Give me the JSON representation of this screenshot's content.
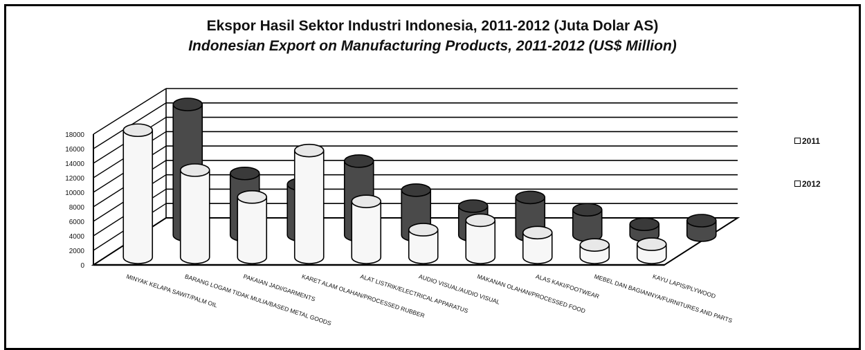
{
  "chart_data": {
    "type": "bar",
    "title": "Ekspor Hasil Sektor Industri Indonesia, 2011-2012 (Juta Dolar AS)",
    "subtitle": "Indonesian Export on Manufacturing Products, 2011-2012 (US$ Million)",
    "categories": [
      "MINYAK KELAPA SAWIT/PALM OIL",
      "BARANG LOGAM TIDAK MULIA/BASED METAL GOODS",
      "PAKAIAN JADI/GARMENTS",
      "KARET ALAM OLAHAN/PROCESSED RUBBER",
      "ALAT LISTRIK/ELECTRICAL APPARATUS",
      "AUDIO VISUAL/AUDIO VISUAL",
      "MAKANAN OLAHAN/PROCESSED FOOD",
      "ALAS KAKI/FOOTWEAR",
      "MEBEL DAN BAGIANNYA/FURNITURES AND PARTS",
      "KAYU LAPIS/PLYWOOD"
    ],
    "series": [
      {
        "name": "2011",
        "color": "#f7f7f7",
        "values": [
          17500,
          12000,
          8300,
          14700,
          7700,
          3800,
          5100,
          3400,
          1700,
          1800
        ]
      },
      {
        "name": "2012",
        "color": "#4a4a4a",
        "values": [
          18000,
          8500,
          7000,
          10200,
          6200,
          4000,
          5200,
          3500,
          1500,
          2000
        ]
      }
    ],
    "ylim": [
      0,
      18000
    ],
    "yticks": [
      "0",
      "2000",
      "4000",
      "6000",
      "8000",
      "10000",
      "12000",
      "14000",
      "16000",
      "18000"
    ],
    "grid": true,
    "legend": "right"
  }
}
